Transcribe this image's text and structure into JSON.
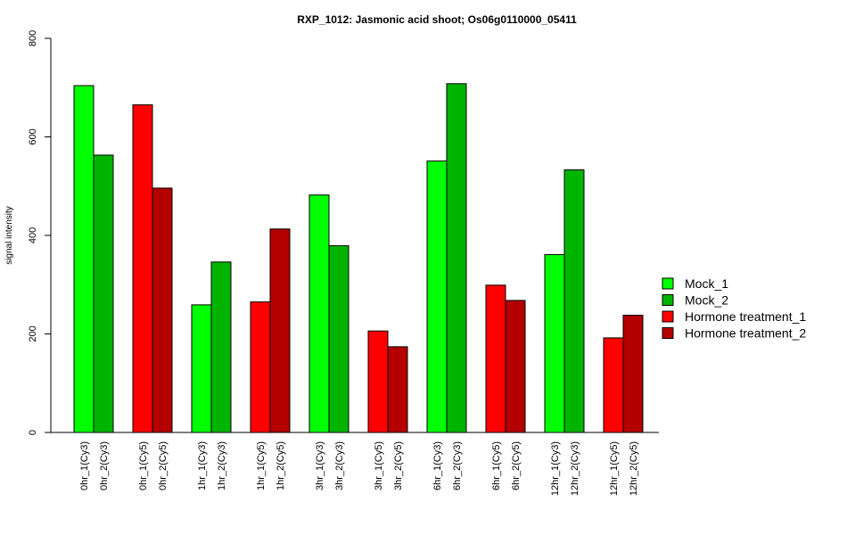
{
  "chart_data": {
    "type": "bar",
    "title": "RXP_1012: Jasmonic acid shoot; Os06g0110000_05411",
    "xlabel": "",
    "ylabel": "signal intensity",
    "ylim": [
      0,
      800
    ],
    "yticks": [
      0,
      200,
      400,
      600,
      800
    ],
    "grid": false,
    "legend_placement": "right",
    "bars": [
      {
        "label": "0hr_1(Cy3)",
        "value": 704,
        "series": "Mock_1"
      },
      {
        "label": "0hr_2(Cy3)",
        "value": 563,
        "series": "Mock_2"
      },
      {
        "label": "0hr_1(Cy5)",
        "value": 665,
        "series": "Hormone treatment_1"
      },
      {
        "label": "0hr_2(Cy5)",
        "value": 496,
        "series": "Hormone treatment_2"
      },
      {
        "label": "1hr_1(Cy3)",
        "value": 259,
        "series": "Mock_1"
      },
      {
        "label": "1hr_2(Cy3)",
        "value": 346,
        "series": "Mock_2"
      },
      {
        "label": "1hr_1(Cy5)",
        "value": 265,
        "series": "Hormone treatment_1"
      },
      {
        "label": "1hr_2(Cy5)",
        "value": 413,
        "series": "Hormone treatment_2"
      },
      {
        "label": "3hr_1(Cy3)",
        "value": 482,
        "series": "Mock_1"
      },
      {
        "label": "3hr_2(Cy3)",
        "value": 379,
        "series": "Mock_2"
      },
      {
        "label": "3hr_1(Cy5)",
        "value": 206,
        "series": "Hormone treatment_1"
      },
      {
        "label": "3hr_2(Cy5)",
        "value": 174,
        "series": "Hormone treatment_2"
      },
      {
        "label": "6hr_1(Cy3)",
        "value": 551,
        "series": "Mock_1"
      },
      {
        "label": "6hr_2(Cy3)",
        "value": 708,
        "series": "Mock_2"
      },
      {
        "label": "6hr_1(Cy5)",
        "value": 299,
        "series": "Hormone treatment_1"
      },
      {
        "label": "6hr_2(Cy5)",
        "value": 268,
        "series": "Hormone treatment_2"
      },
      {
        "label": "12hr_1(Cy3)",
        "value": 361,
        "series": "Mock_1"
      },
      {
        "label": "12hr_2(Cy3)",
        "value": 533,
        "series": "Mock_2"
      },
      {
        "label": "12hr_1(Cy5)",
        "value": 192,
        "series": "Hormone treatment_1"
      },
      {
        "label": "12hr_2(Cy5)",
        "value": 238,
        "series": "Hormone treatment_2"
      }
    ],
    "legend": [
      {
        "name": "Mock_1",
        "color": "#00ff00"
      },
      {
        "name": "Mock_2",
        "color": "#00b400"
      },
      {
        "name": "Hormone treatment_1",
        "color": "#ff0000"
      },
      {
        "name": "Hormone treatment_2",
        "color": "#b40000"
      }
    ]
  }
}
